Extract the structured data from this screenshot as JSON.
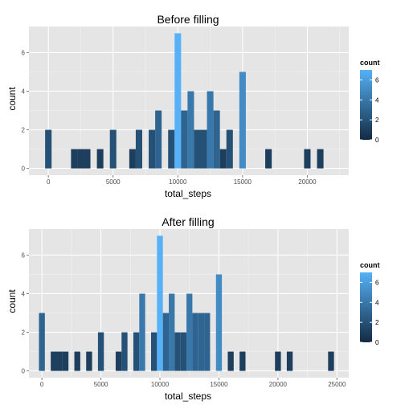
{
  "colors": {
    "low": "#132B43",
    "high": "#56B1F7",
    "panel": "#e5e5e5",
    "grid_major": "#ffffff",
    "grid_minor": "#f2f2f2"
  },
  "chart_data": [
    {
      "type": "bar",
      "title": "Before filling",
      "xlabel": "total_steps",
      "ylabel": "count",
      "xlim": [
        -1500,
        23200
      ],
      "ylim": [
        -0.35,
        7.35
      ],
      "x_ticks": [
        0,
        5000,
        10000,
        15000,
        20000
      ],
      "y_ticks": [
        0,
        2,
        4,
        6
      ],
      "grid": true,
      "legend": {
        "title": "count",
        "position": "right",
        "ticks": [
          0,
          2,
          4,
          6
        ],
        "range": [
          0,
          7
        ]
      },
      "binwidth": 500,
      "bins": [
        {
          "x": 0,
          "count": 2
        },
        {
          "x": 2000,
          "count": 1
        },
        {
          "x": 2500,
          "count": 1
        },
        {
          "x": 3000,
          "count": 1
        },
        {
          "x": 4000,
          "count": 1
        },
        {
          "x": 5000,
          "count": 2
        },
        {
          "x": 6500,
          "count": 1
        },
        {
          "x": 7000,
          "count": 2
        },
        {
          "x": 8000,
          "count": 2
        },
        {
          "x": 8500,
          "count": 3
        },
        {
          "x": 9500,
          "count": 2
        },
        {
          "x": 10000,
          "count": 7
        },
        {
          "x": 10500,
          "count": 3
        },
        {
          "x": 11000,
          "count": 4
        },
        {
          "x": 11500,
          "count": 2
        },
        {
          "x": 12000,
          "count": 2
        },
        {
          "x": 12500,
          "count": 4
        },
        {
          "x": 13000,
          "count": 3
        },
        {
          "x": 13500,
          "count": 1
        },
        {
          "x": 14000,
          "count": 2
        },
        {
          "x": 15000,
          "count": 5
        },
        {
          "x": 17000,
          "count": 1
        },
        {
          "x": 20000,
          "count": 1
        },
        {
          "x": 21000,
          "count": 1
        }
      ]
    },
    {
      "type": "bar",
      "title": "After filling",
      "xlabel": "total_steps",
      "ylabel": "count",
      "xlim": [
        -1100,
        26000
      ],
      "ylim": [
        -0.35,
        7.35
      ],
      "x_ticks": [
        0,
        5000,
        10000,
        15000,
        20000,
        25000
      ],
      "y_ticks": [
        0,
        2,
        4,
        6
      ],
      "grid": true,
      "legend": {
        "title": "count",
        "position": "right",
        "ticks": [
          0,
          2,
          4,
          6
        ],
        "range": [
          0,
          7
        ]
      },
      "binwidth": 500,
      "bins": [
        {
          "x": 0,
          "count": 3
        },
        {
          "x": 1000,
          "count": 1
        },
        {
          "x": 1500,
          "count": 1
        },
        {
          "x": 2000,
          "count": 1
        },
        {
          "x": 3000,
          "count": 1
        },
        {
          "x": 4000,
          "count": 1
        },
        {
          "x": 5000,
          "count": 2
        },
        {
          "x": 6500,
          "count": 1
        },
        {
          "x": 7000,
          "count": 2
        },
        {
          "x": 8000,
          "count": 2
        },
        {
          "x": 8500,
          "count": 4
        },
        {
          "x": 9500,
          "count": 2
        },
        {
          "x": 10000,
          "count": 7
        },
        {
          "x": 10500,
          "count": 3
        },
        {
          "x": 11000,
          "count": 4
        },
        {
          "x": 11500,
          "count": 2
        },
        {
          "x": 12000,
          "count": 2
        },
        {
          "x": 12500,
          "count": 4
        },
        {
          "x": 13000,
          "count": 3
        },
        {
          "x": 13500,
          "count": 3
        },
        {
          "x": 14000,
          "count": 3
        },
        {
          "x": 15000,
          "count": 5
        },
        {
          "x": 16000,
          "count": 1
        },
        {
          "x": 17000,
          "count": 1
        },
        {
          "x": 20000,
          "count": 1
        },
        {
          "x": 21000,
          "count": 1
        },
        {
          "x": 24500,
          "count": 1
        }
      ]
    }
  ]
}
